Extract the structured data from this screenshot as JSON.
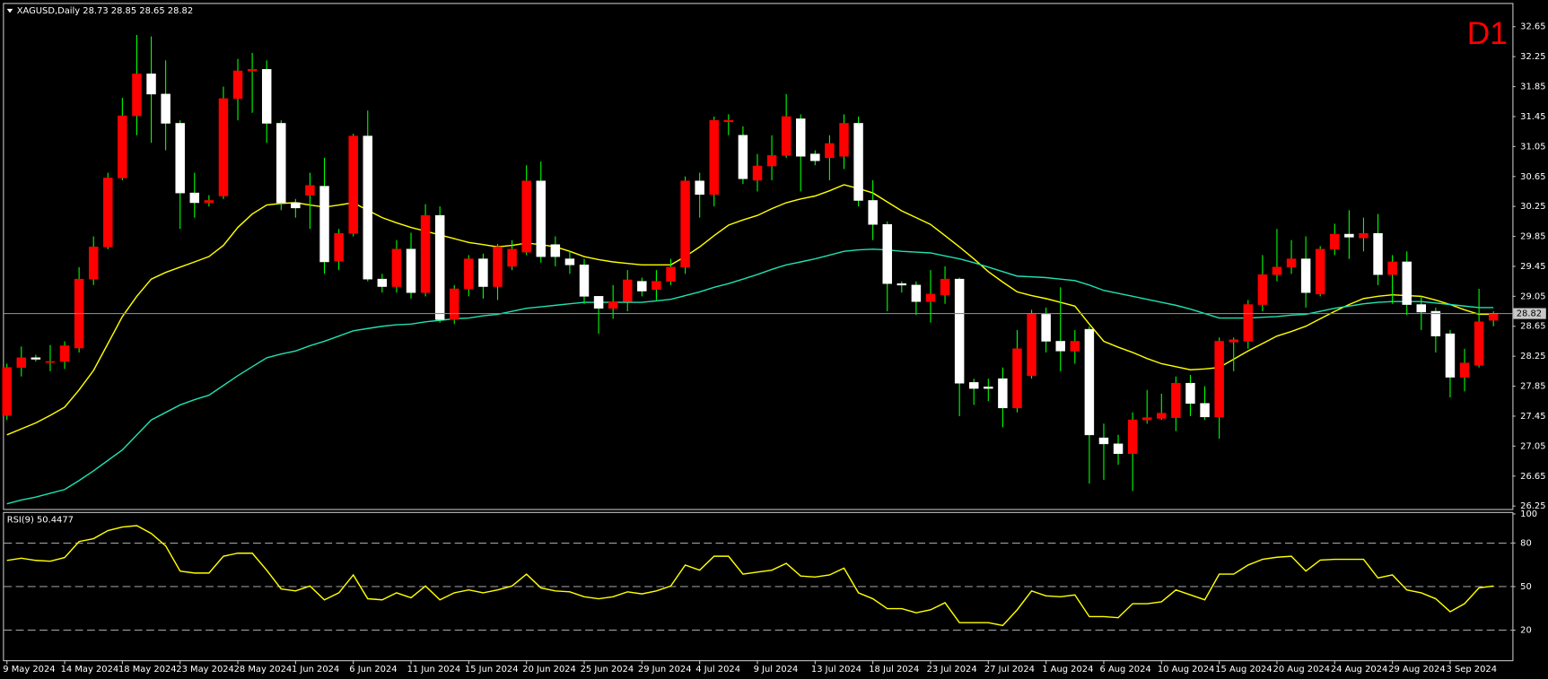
{
  "chart_data": [
    {
      "type": "candlestick",
      "title": "XAGUSD,Daily  28.73 28.85 28.65 28.82",
      "timeframe": "D1",
      "categories": [
        "9 May 2024",
        null,
        null,
        null,
        "14 May 2024",
        null,
        null,
        null,
        "18 May 2024",
        null,
        null,
        null,
        "23 May 2024",
        null,
        null,
        null,
        "28 May 2024",
        null,
        null,
        null,
        "1 Jun 2024",
        null,
        null,
        null,
        "6 Jun 2024",
        null,
        null,
        null,
        "11 Jun 2024",
        null,
        null,
        null,
        "15 Jun 2024",
        null,
        null,
        null,
        "20 Jun 2024",
        null,
        null,
        null,
        "25 Jun 2024",
        null,
        null,
        null,
        "29 Jun 2024",
        null,
        null,
        null,
        "4 Jul 2024",
        null,
        null,
        null,
        "9 Jul 2024",
        null,
        null,
        null,
        "13 Jul 2024",
        null,
        null,
        null,
        "18 Jul 2024",
        null,
        null,
        null,
        "23 Jul 2024",
        null,
        null,
        null,
        "27 Jul 2024",
        null,
        null,
        null,
        "1 Aug 2024",
        null,
        null,
        null,
        "6 Aug 2024",
        null,
        null,
        null,
        "10 Aug 2024",
        null,
        null,
        null,
        "15 Aug 2024",
        null,
        null,
        null,
        "20 Aug 2024",
        null,
        null,
        null,
        "24 Aug 2024",
        null,
        null,
        null,
        "29 Aug 2024",
        null,
        null,
        null,
        "3 Sep 2024",
        null,
        null,
        null
      ],
      "open": [
        27.46,
        28.1,
        28.23,
        28.17,
        28.18,
        28.36,
        29.28,
        29.71,
        30.63,
        31.46,
        32.02,
        31.75,
        31.36,
        30.43,
        30.3,
        30.39,
        31.69,
        32.06,
        32.08,
        31.36,
        30.3,
        30.4,
        30.52,
        29.52,
        29.89,
        31.19,
        29.28,
        29.18,
        29.68,
        29.1,
        30.13,
        28.74,
        29.15,
        29.55,
        29.18,
        29.45,
        29.64,
        30.59,
        29.74,
        29.55,
        29.47,
        29.05,
        28.89,
        28.98,
        29.25,
        29.14,
        29.25,
        29.44,
        30.59,
        30.41,
        31.38,
        31.2,
        30.6,
        30.79,
        30.93,
        31.42,
        30.95,
        30.9,
        30.92,
        31.36,
        30.33,
        30.01,
        29.22,
        29.2,
        28.98,
        29.07,
        29.28,
        27.9,
        27.84,
        27.95,
        27.56,
        27.99,
        28.81,
        28.45,
        28.32,
        28.61,
        27.16,
        27.08,
        26.95,
        27.4,
        27.42,
        27.43,
        27.89,
        27.62,
        27.44,
        28.44,
        28.45,
        28.94,
        29.34,
        29.44,
        29.55,
        29.08,
        29.68,
        29.88,
        29.83,
        29.89,
        29.34,
        29.51,
        28.94,
        28.85,
        28.55,
        27.97,
        28.13,
        28.73
      ],
      "high": [
        28.15,
        28.38,
        28.27,
        28.4,
        28.45,
        29.44,
        29.85,
        30.7,
        31.7,
        32.54,
        32.52,
        32.2,
        31.4,
        30.7,
        30.4,
        31.85,
        32.22,
        32.3,
        32.2,
        31.4,
        30.35,
        30.7,
        30.9,
        29.95,
        31.22,
        31.53,
        29.35,
        29.8,
        29.9,
        30.28,
        30.25,
        29.2,
        29.6,
        29.62,
        29.75,
        29.8,
        30.8,
        30.85,
        29.85,
        29.65,
        29.55,
        29.05,
        29.2,
        29.4,
        29.3,
        29.4,
        29.55,
        30.65,
        30.7,
        31.45,
        31.48,
        31.32,
        30.95,
        31.2,
        31.75,
        31.48,
        31.0,
        31.2,
        31.48,
        31.45,
        30.6,
        30.05,
        29.25,
        29.25,
        29.4,
        29.45,
        29.3,
        27.95,
        27.95,
        28.1,
        28.6,
        28.87,
        28.9,
        29.17,
        28.6,
        28.65,
        27.35,
        27.2,
        27.5,
        27.8,
        27.75,
        27.98,
        28.0,
        27.85,
        28.5,
        28.5,
        29.0,
        29.6,
        29.95,
        29.8,
        29.85,
        29.72,
        30.02,
        30.2,
        30.1,
        30.15,
        29.6,
        29.65,
        29.05,
        28.9,
        28.6,
        28.35,
        29.15,
        28.85
      ],
      "low": [
        27.4,
        27.98,
        28.18,
        28.05,
        28.08,
        28.3,
        29.2,
        29.68,
        30.6,
        31.2,
        31.1,
        31.0,
        29.95,
        30.1,
        30.25,
        30.35,
        31.4,
        31.5,
        31.1,
        30.2,
        30.1,
        29.95,
        29.35,
        29.4,
        29.85,
        29.25,
        29.1,
        29.1,
        29.02,
        29.05,
        28.7,
        28.68,
        29.05,
        29.02,
        29.0,
        29.4,
        29.6,
        29.5,
        29.45,
        29.35,
        28.95,
        28.55,
        28.75,
        28.85,
        29.05,
        29.0,
        29.2,
        29.35,
        30.1,
        30.25,
        31.2,
        30.55,
        30.45,
        30.6,
        30.9,
        30.45,
        30.8,
        30.6,
        30.75,
        30.25,
        29.8,
        28.85,
        29.1,
        28.8,
        28.7,
        28.95,
        27.45,
        27.6,
        27.65,
        27.3,
        27.5,
        27.95,
        28.3,
        28.05,
        28.15,
        26.55,
        26.6,
        26.8,
        26.45,
        27.35,
        27.4,
        27.25,
        27.45,
        27.4,
        27.15,
        28.05,
        28.35,
        28.85,
        29.25,
        29.35,
        28.9,
        29.05,
        29.6,
        29.55,
        29.65,
        29.2,
        28.95,
        28.8,
        28.6,
        28.3,
        27.7,
        27.78,
        28.1,
        28.65
      ],
      "close": [
        28.1,
        28.23,
        28.21,
        28.18,
        28.39,
        29.28,
        29.71,
        30.63,
        31.46,
        32.02,
        31.75,
        31.36,
        30.43,
        30.3,
        30.33,
        31.69,
        32.06,
        32.08,
        31.36,
        30.3,
        30.23,
        30.53,
        29.51,
        29.89,
        31.19,
        29.28,
        29.18,
        29.68,
        29.1,
        30.13,
        28.74,
        29.15,
        29.55,
        29.18,
        29.71,
        29.68,
        30.59,
        29.58,
        29.58,
        29.47,
        29.05,
        28.89,
        28.98,
        29.27,
        29.12,
        29.25,
        29.44,
        30.59,
        30.41,
        31.4,
        31.4,
        30.62,
        30.79,
        30.93,
        31.45,
        30.92,
        30.86,
        31.09,
        31.36,
        30.33,
        30.01,
        29.22,
        29.2,
        28.98,
        29.08,
        29.28,
        27.89,
        27.82,
        27.82,
        27.56,
        28.35,
        28.81,
        28.45,
        28.32,
        28.45,
        27.2,
        27.08,
        26.95,
        27.4,
        27.43,
        27.49,
        27.89,
        27.62,
        27.44,
        28.45,
        28.47,
        28.94,
        29.34,
        29.44,
        29.55,
        29.1,
        29.68,
        29.88,
        29.84,
        29.89,
        29.34,
        29.51,
        28.94,
        28.84,
        28.52,
        27.97,
        28.16,
        28.71,
        28.82
      ],
      "up_color": "#ff0000",
      "down_color": "#ffffff",
      "wick_color": "#00ff00",
      "series": [
        {
          "color": "#ffff00",
          "values": [
            27.2,
            27.28,
            27.36,
            27.46,
            27.57,
            27.8,
            28.06,
            28.42,
            28.78,
            29.05,
            29.28,
            29.37,
            29.44,
            29.51,
            29.58,
            29.73,
            29.97,
            30.15,
            30.27,
            30.29,
            30.3,
            30.27,
            30.24,
            30.27,
            30.3,
            30.2,
            30.1,
            30.03,
            29.97,
            29.92,
            29.87,
            29.82,
            29.77,
            29.74,
            29.71,
            29.73,
            29.76,
            29.74,
            29.71,
            29.65,
            29.58,
            29.54,
            29.51,
            29.49,
            29.47,
            29.47,
            29.47,
            29.58,
            29.71,
            29.86,
            30.0,
            30.07,
            30.13,
            30.22,
            30.3,
            30.35,
            30.39,
            30.46,
            30.54,
            30.49,
            30.43,
            30.31,
            30.19,
            30.1,
            30.01,
            29.86,
            29.71,
            29.55,
            29.38,
            29.24,
            29.11,
            29.06,
            29.02,
            28.97,
            28.92,
            28.68,
            28.45,
            28.37,
            28.3,
            28.22,
            28.15,
            28.11,
            28.07,
            28.08,
            28.1,
            28.21,
            28.32,
            28.42,
            28.52,
            28.58,
            28.65,
            28.75,
            28.85,
            28.94,
            29.02,
            29.05,
            29.07,
            29.06,
            29.05,
            29.0,
            28.94,
            28.87,
            28.81,
            28.81
          ]
        },
        {
          "color": "#20e0b0",
          "values": [
            26.28,
            26.33,
            26.37,
            26.42,
            26.47,
            26.59,
            26.72,
            26.86,
            27.0,
            27.2,
            27.4,
            27.5,
            27.6,
            27.67,
            27.73,
            27.86,
            27.99,
            28.11,
            28.23,
            28.28,
            28.32,
            28.39,
            28.45,
            28.52,
            28.59,
            28.62,
            28.65,
            28.67,
            28.68,
            28.71,
            28.73,
            28.75,
            28.76,
            28.79,
            28.81,
            28.85,
            28.89,
            28.91,
            28.93,
            28.95,
            28.97,
            28.97,
            28.97,
            28.97,
            28.97,
            28.99,
            29.01,
            29.06,
            29.11,
            29.17,
            29.22,
            29.28,
            29.34,
            29.41,
            29.47,
            29.51,
            29.55,
            29.6,
            29.65,
            29.67,
            29.68,
            29.67,
            29.65,
            29.64,
            29.63,
            29.59,
            29.55,
            29.5,
            29.44,
            29.38,
            29.32,
            29.31,
            29.3,
            29.28,
            29.26,
            29.2,
            29.13,
            29.09,
            29.05,
            29.01,
            28.97,
            28.93,
            28.88,
            28.82,
            28.76,
            28.76,
            28.76,
            28.77,
            28.78,
            28.8,
            28.81,
            28.85,
            28.89,
            28.92,
            28.95,
            28.97,
            28.98,
            28.98,
            28.98,
            28.96,
            28.94,
            28.92,
            28.9,
            28.9
          ]
        }
      ],
      "last_price": 28.82,
      "ylim": [
        26.25,
        32.65
      ],
      "yticks": [
        32.65,
        32.25,
        31.85,
        31.45,
        31.05,
        30.65,
        30.25,
        29.85,
        29.45,
        29.05,
        28.65,
        28.25,
        27.85,
        27.45,
        27.05,
        26.65,
        26.25
      ]
    },
    {
      "type": "line",
      "title": "RSI(9) 50.4477",
      "color": "#ffff00",
      "values": [
        68,
        69.5,
        68,
        67.5,
        70,
        81,
        83,
        88.6,
        91,
        92,
        86.6,
        78,
        60.7,
        59.3,
        59.3,
        70.9,
        73,
        73,
        61.3,
        48.4,
        47,
        50.4,
        40.9,
        45.7,
        58,
        41.6,
        40.9,
        45.7,
        42.3,
        50.4,
        40.9,
        45.7,
        47.7,
        45.7,
        47.7,
        50.4,
        58.6,
        49.1,
        47,
        46.4,
        43,
        41.6,
        43,
        46.4,
        45,
        47,
        50.4,
        64.8,
        61.3,
        70.9,
        70.9,
        58.6,
        60,
        61.3,
        66,
        57.3,
        56.6,
        58,
        62.7,
        45.7,
        41.6,
        34.8,
        34.8,
        32,
        34,
        38.9,
        25.2,
        25.2,
        25.2,
        23.2,
        34,
        47,
        43.6,
        43,
        44.3,
        29.3,
        29.3,
        28.6,
        38.2,
        38.2,
        39.5,
        47.7,
        44.3,
        40.9,
        58.6,
        58.6,
        64.8,
        68.8,
        70.2,
        70.9,
        60.7,
        68.2,
        68.8,
        68.8,
        68.8,
        55.9,
        58,
        47.7,
        45.7,
        41.6,
        32.7,
        38.2,
        49.1,
        50.4
      ],
      "levels": [
        80,
        50,
        20
      ],
      "ylim": [
        0,
        100
      ],
      "yticks": [
        100,
        80,
        50,
        20
      ]
    }
  ]
}
